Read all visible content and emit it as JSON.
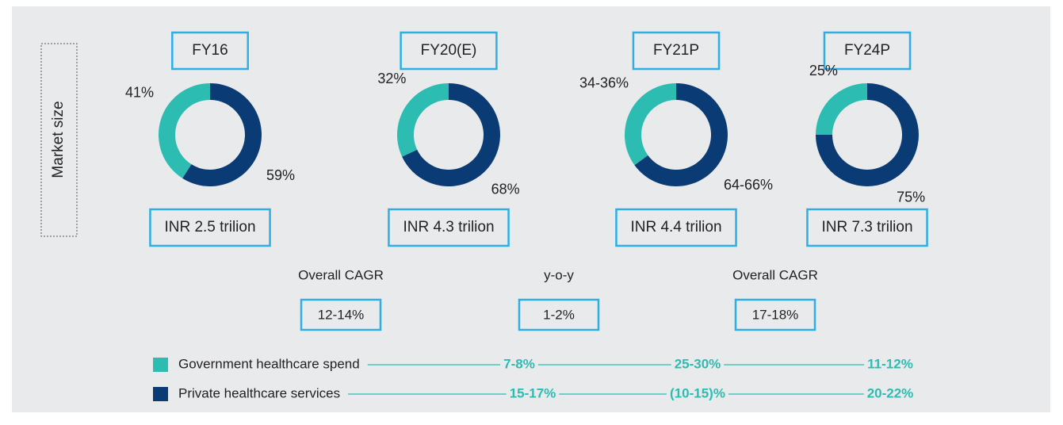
{
  "side_label": "Market size",
  "chart_data": [
    {
      "type": "pie",
      "title": "FY16",
      "values": [
        41,
        59
      ],
      "value_labels": [
        "41%",
        "59%"
      ],
      "subtitle": "INR 2.5 trilion"
    },
    {
      "type": "pie",
      "title": "FY20(E)",
      "values": [
        32,
        68
      ],
      "value_labels": [
        "32%",
        "68%"
      ],
      "subtitle": "INR 4.3 trilion"
    },
    {
      "type": "pie",
      "title": "FY21P",
      "values": [
        35,
        65
      ],
      "value_labels": [
        "34-36%",
        "64-66%"
      ],
      "subtitle": "INR 4.4 trilion"
    },
    {
      "type": "pie",
      "title": "FY24P",
      "values": [
        25,
        75
      ],
      "value_labels": [
        "25%",
        "75%"
      ],
      "subtitle": "INR 7.3 trilion"
    }
  ],
  "legend": [
    {
      "name": "Government healthcare spend",
      "color": "#2dbcb1"
    },
    {
      "name": "Private healthcare services",
      "color": "#0b3b74"
    }
  ],
  "periods": [
    {
      "label": "Overall CAGR",
      "value": "12-14%"
    },
    {
      "label": "y-o-y",
      "value": "1-2%"
    },
    {
      "label": "Overall CAGR",
      "value": "17-18%"
    }
  ],
  "growth": [
    [
      "7-8%",
      "25-30%",
      "11-12%"
    ],
    [
      "15-17%",
      "(10-15)%",
      "20-22%"
    ]
  ]
}
